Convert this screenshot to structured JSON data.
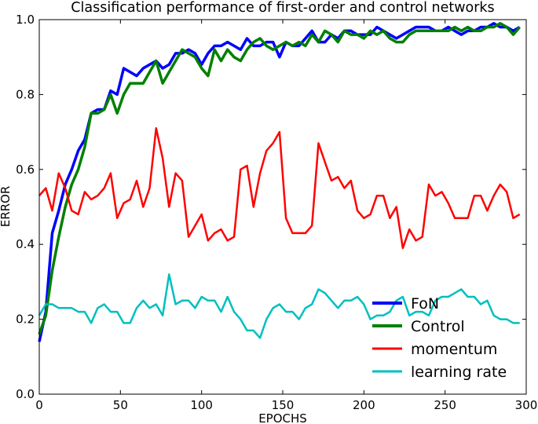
{
  "chart_data": {
    "type": "line",
    "title": "Classification performance of first-order and control networks",
    "xlabel": "EPOCHS",
    "ylabel": "ERROR",
    "xlim": [
      0,
      300
    ],
    "ylim": [
      0.0,
      1.0
    ],
    "xticks": [
      0,
      50,
      100,
      150,
      200,
      250,
      300
    ],
    "yticks": [
      0.0,
      0.2,
      0.4,
      0.6,
      0.8,
      1.0
    ],
    "grid": false,
    "legend_position": "lower-right",
    "x": [
      0,
      4,
      8,
      12,
      16,
      20,
      24,
      28,
      32,
      36,
      40,
      44,
      48,
      52,
      56,
      60,
      64,
      68,
      72,
      76,
      80,
      84,
      88,
      92,
      96,
      100,
      104,
      108,
      112,
      116,
      120,
      124,
      128,
      132,
      136,
      140,
      144,
      148,
      152,
      156,
      160,
      164,
      168,
      172,
      176,
      180,
      184,
      188,
      192,
      196,
      200,
      204,
      208,
      212,
      216,
      220,
      224,
      228,
      232,
      236,
      240,
      244,
      248,
      252,
      256,
      260,
      264,
      268,
      272,
      276,
      280,
      284,
      288,
      292,
      296
    ],
    "series": [
      {
        "name": "FoN",
        "color": "#0000ff",
        "values": [
          0.14,
          0.22,
          0.43,
          0.49,
          0.56,
          0.6,
          0.65,
          0.68,
          0.75,
          0.76,
          0.76,
          0.81,
          0.8,
          0.87,
          0.86,
          0.85,
          0.87,
          0.88,
          0.89,
          0.87,
          0.88,
          0.91,
          0.91,
          0.92,
          0.91,
          0.88,
          0.91,
          0.93,
          0.93,
          0.94,
          0.93,
          0.92,
          0.95,
          0.93,
          0.93,
          0.94,
          0.94,
          0.9,
          0.94,
          0.93,
          0.93,
          0.95,
          0.97,
          0.94,
          0.94,
          0.96,
          0.95,
          0.97,
          0.97,
          0.96,
          0.96,
          0.96,
          0.98,
          0.97,
          0.96,
          0.95,
          0.96,
          0.97,
          0.98,
          0.98,
          0.98,
          0.97,
          0.97,
          0.98,
          0.97,
          0.96,
          0.97,
          0.97,
          0.98,
          0.98,
          0.99,
          0.98,
          0.98,
          0.97,
          0.98
        ]
      },
      {
        "name": "Control",
        "color": "#008000",
        "values": [
          0.16,
          0.21,
          0.33,
          0.42,
          0.5,
          0.56,
          0.6,
          0.66,
          0.75,
          0.75,
          0.76,
          0.8,
          0.75,
          0.8,
          0.83,
          0.83,
          0.83,
          0.86,
          0.89,
          0.83,
          0.86,
          0.89,
          0.92,
          0.91,
          0.9,
          0.87,
          0.85,
          0.92,
          0.89,
          0.92,
          0.9,
          0.89,
          0.92,
          0.94,
          0.95,
          0.93,
          0.92,
          0.93,
          0.94,
          0.93,
          0.94,
          0.93,
          0.96,
          0.94,
          0.97,
          0.96,
          0.94,
          0.97,
          0.96,
          0.96,
          0.95,
          0.97,
          0.96,
          0.97,
          0.95,
          0.94,
          0.94,
          0.96,
          0.97,
          0.97,
          0.97,
          0.97,
          0.97,
          0.97,
          0.98,
          0.97,
          0.98,
          0.97,
          0.97,
          0.98,
          0.98,
          0.99,
          0.98,
          0.96,
          0.98
        ]
      },
      {
        "name": "momentum",
        "color": "#ff0000",
        "values": [
          0.53,
          0.55,
          0.49,
          0.59,
          0.55,
          0.49,
          0.48,
          0.54,
          0.52,
          0.53,
          0.55,
          0.59,
          0.47,
          0.51,
          0.52,
          0.57,
          0.5,
          0.55,
          0.71,
          0.63,
          0.5,
          0.59,
          0.57,
          0.42,
          0.45,
          0.48,
          0.41,
          0.43,
          0.44,
          0.41,
          0.42,
          0.6,
          0.61,
          0.5,
          0.59,
          0.65,
          0.67,
          0.7,
          0.47,
          0.43,
          0.43,
          0.43,
          0.45,
          0.67,
          0.62,
          0.57,
          0.58,
          0.55,
          0.57,
          0.49,
          0.47,
          0.48,
          0.53,
          0.53,
          0.47,
          0.5,
          0.39,
          0.44,
          0.41,
          0.42,
          0.56,
          0.53,
          0.54,
          0.51,
          0.47,
          0.47,
          0.47,
          0.53,
          0.53,
          0.49,
          0.53,
          0.56,
          0.54,
          0.47,
          0.48
        ]
      },
      {
        "name": "learning rate",
        "color": "#00bfbf",
        "values": [
          0.21,
          0.24,
          0.24,
          0.23,
          0.23,
          0.23,
          0.22,
          0.22,
          0.19,
          0.23,
          0.24,
          0.22,
          0.22,
          0.19,
          0.19,
          0.23,
          0.25,
          0.23,
          0.24,
          0.21,
          0.32,
          0.24,
          0.25,
          0.25,
          0.23,
          0.26,
          0.25,
          0.25,
          0.22,
          0.26,
          0.22,
          0.2,
          0.17,
          0.17,
          0.15,
          0.2,
          0.23,
          0.24,
          0.22,
          0.22,
          0.2,
          0.23,
          0.24,
          0.28,
          0.27,
          0.25,
          0.23,
          0.25,
          0.25,
          0.26,
          0.24,
          0.2,
          0.21,
          0.21,
          0.22,
          0.25,
          0.26,
          0.21,
          0.22,
          0.22,
          0.21,
          0.25,
          0.26,
          0.26,
          0.27,
          0.28,
          0.26,
          0.26,
          0.24,
          0.25,
          0.21,
          0.2,
          0.2,
          0.19,
          0.19
        ]
      }
    ]
  }
}
